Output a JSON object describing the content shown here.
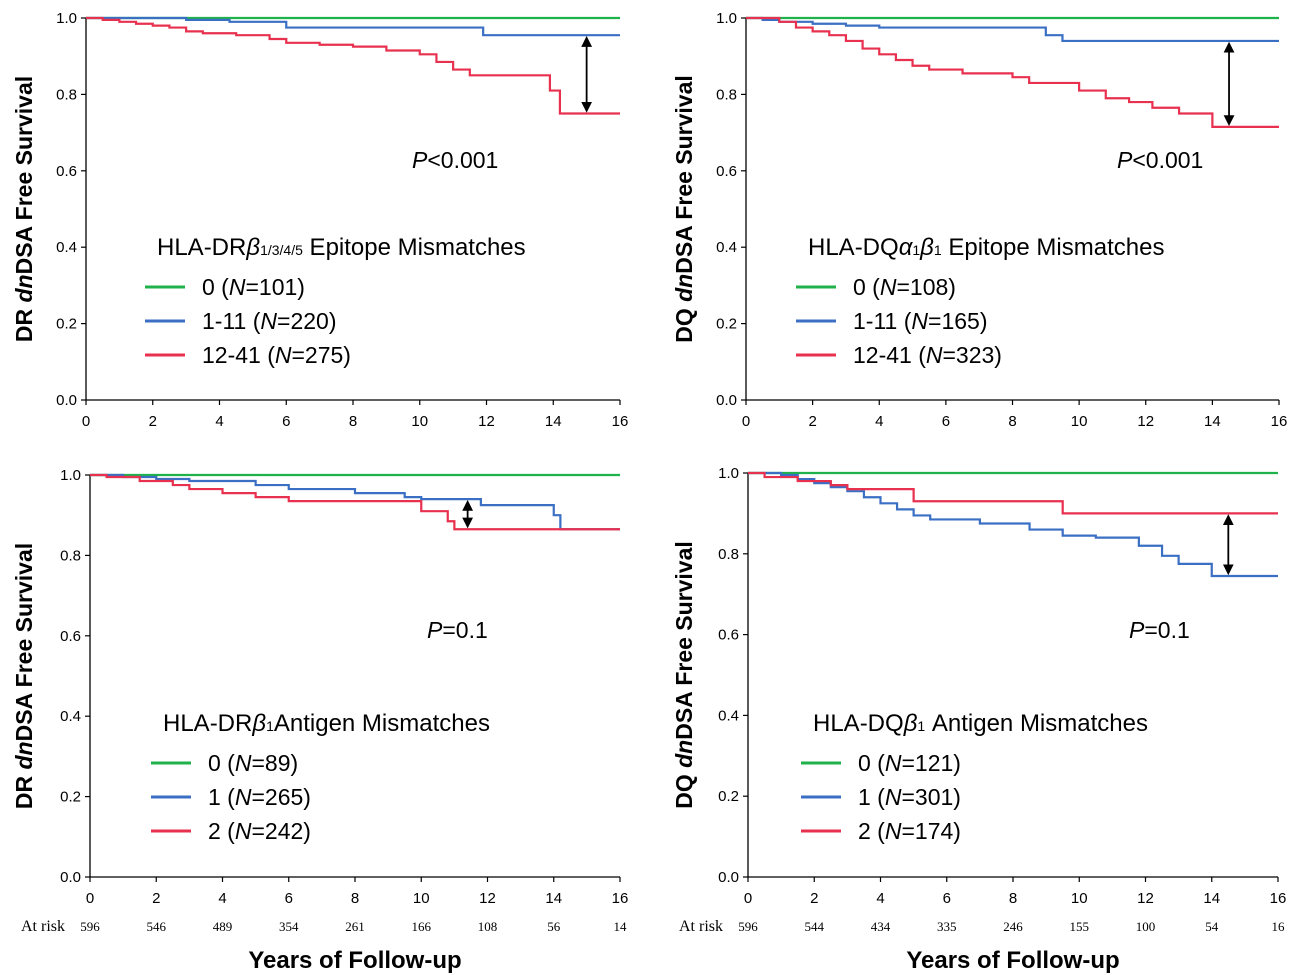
{
  "figure": {
    "x_axis_label": "Years of Follow-up",
    "at_risk_label": "At risk"
  },
  "chart_data": [
    {
      "type": "line",
      "step": true,
      "ylabel_prefix": "DR ",
      "ylabel_italic": "dn",
      "ylabel_suffix": "DSA Free Survival",
      "xlim": [
        0,
        16
      ],
      "ylim": [
        0,
        1
      ],
      "xticks": [
        0,
        2,
        4,
        6,
        8,
        10,
        12,
        14,
        16
      ],
      "yticks": [
        "0.0",
        "0.2",
        "0.4",
        "0.6",
        "0.8",
        "1.0"
      ],
      "pvalue": {
        "prefix": "P",
        "text": "<0.001"
      },
      "legend": {
        "title_a": "HLA-DR",
        "title_greek": "β",
        "title_sub": "1/3/4/5",
        "title_b": " Epitope Mismatches"
      },
      "series": [
        {
          "name": "0",
          "n": "101",
          "color": "#1fb24a",
          "points": [
            [
              0,
              1.0
            ],
            [
              16,
              1.0
            ]
          ]
        },
        {
          "name": "1-11",
          "n": "220",
          "color": "#3a6fc4",
          "points": [
            [
              0,
              1.0
            ],
            [
              3,
              0.995
            ],
            [
              4.3,
              0.99
            ],
            [
              6,
              0.975
            ],
            [
              11.9,
              0.955
            ],
            [
              16,
              0.955
            ]
          ]
        },
        {
          "name": "12-41",
          "n": "275",
          "color": "#e8304f",
          "points": [
            [
              0,
              1.0
            ],
            [
              0.5,
              0.995
            ],
            [
              1,
              0.99
            ],
            [
              1.5,
              0.985
            ],
            [
              2,
              0.98
            ],
            [
              2.5,
              0.975
            ],
            [
              3,
              0.965
            ],
            [
              3.5,
              0.96
            ],
            [
              4.5,
              0.955
            ],
            [
              5.5,
              0.945
            ],
            [
              6,
              0.935
            ],
            [
              7,
              0.93
            ],
            [
              8,
              0.925
            ],
            [
              9,
              0.915
            ],
            [
              10,
              0.905
            ],
            [
              10.5,
              0.885
            ],
            [
              11,
              0.865
            ],
            [
              11.5,
              0.85
            ],
            [
              13.9,
              0.81
            ],
            [
              14.2,
              0.75
            ],
            [
              16,
              0.75
            ]
          ]
        }
      ],
      "arrow": {
        "x": 15,
        "y_top": 0.955,
        "y_bottom": 0.75
      }
    },
    {
      "type": "line",
      "step": true,
      "ylabel_prefix": "DQ ",
      "ylabel_italic": "dn",
      "ylabel_suffix": "DSA Free Survival",
      "xlim": [
        0,
        16
      ],
      "ylim": [
        0,
        1
      ],
      "xticks": [
        0,
        2,
        4,
        6,
        8,
        10,
        12,
        14,
        16
      ],
      "yticks": [
        "0.0",
        "0.2",
        "0.4",
        "0.6",
        "0.8",
        "1.0"
      ],
      "pvalue": {
        "prefix": "P",
        "text": "<0.001"
      },
      "legend": {
        "title_a": "HLA-DQ",
        "title_greek": "α",
        "title_sub": "1",
        "title_greek2": "β",
        "title_sub2": "1",
        "title_b": " Epitope Mismatches"
      },
      "series": [
        {
          "name": "0",
          "n": "108",
          "color": "#1fb24a",
          "points": [
            [
              0,
              1.0
            ],
            [
              16,
              1.0
            ]
          ]
        },
        {
          "name": "1-11",
          "n": "165",
          "color": "#3a6fc4",
          "points": [
            [
              0,
              1.0
            ],
            [
              0.5,
              0.995
            ],
            [
              1,
              0.99
            ],
            [
              2,
              0.985
            ],
            [
              3,
              0.98
            ],
            [
              4,
              0.975
            ],
            [
              9,
              0.955
            ],
            [
              9.5,
              0.94
            ],
            [
              16,
              0.94
            ]
          ]
        },
        {
          "name": "12-41",
          "n": "323",
          "color": "#e8304f",
          "points": [
            [
              0,
              1.0
            ],
            [
              1,
              0.99
            ],
            [
              1.5,
              0.975
            ],
            [
              2,
              0.965
            ],
            [
              2.5,
              0.955
            ],
            [
              3,
              0.94
            ],
            [
              3.5,
              0.92
            ],
            [
              4,
              0.905
            ],
            [
              4.5,
              0.89
            ],
            [
              5,
              0.875
            ],
            [
              5.5,
              0.865
            ],
            [
              6.5,
              0.855
            ],
            [
              8,
              0.845
            ],
            [
              8.5,
              0.83
            ],
            [
              10,
              0.81
            ],
            [
              10.8,
              0.79
            ],
            [
              11.5,
              0.78
            ],
            [
              12.2,
              0.765
            ],
            [
              13,
              0.75
            ],
            [
              14,
              0.715
            ],
            [
              16,
              0.715
            ]
          ]
        }
      ],
      "arrow": {
        "x": 14.5,
        "y_top": 0.94,
        "y_bottom": 0.715
      }
    },
    {
      "type": "line",
      "step": true,
      "ylabel_prefix": "DR ",
      "ylabel_italic": "dn",
      "ylabel_suffix": "DSA Free Survival",
      "xlim": [
        0,
        16
      ],
      "ylim": [
        0,
        1
      ],
      "xticks": [
        0,
        2,
        4,
        6,
        8,
        10,
        12,
        14,
        16
      ],
      "yticks": [
        "0.0",
        "0.2",
        "0.4",
        "0.6",
        "0.8",
        "1.0"
      ],
      "pvalue": {
        "prefix": "P",
        "text": "=0.1"
      },
      "legend": {
        "title_a": "HLA-DR",
        "title_greek": "β",
        "title_sub": "1",
        "title_b": "Antigen Mismatches"
      },
      "series": [
        {
          "name": "0",
          "n": "89",
          "color": "#1fb24a",
          "points": [
            [
              0,
              1.0
            ],
            [
              16,
              1.0
            ]
          ]
        },
        {
          "name": "1",
          "n": "265",
          "color": "#3a6fc4",
          "points": [
            [
              0,
              1.0
            ],
            [
              1,
              0.995
            ],
            [
              2,
              0.99
            ],
            [
              3,
              0.985
            ],
            [
              5,
              0.975
            ],
            [
              6,
              0.965
            ],
            [
              8,
              0.955
            ],
            [
              9.5,
              0.945
            ],
            [
              10,
              0.94
            ],
            [
              11.8,
              0.925
            ],
            [
              14,
              0.9
            ],
            [
              14.2,
              0.865
            ],
            [
              16,
              0.865
            ]
          ]
        },
        {
          "name": "2",
          "n": "242",
          "color": "#e8304f",
          "points": [
            [
              0,
              1.0
            ],
            [
              0.5,
              0.995
            ],
            [
              1.5,
              0.985
            ],
            [
              2.5,
              0.975
            ],
            [
              3,
              0.965
            ],
            [
              4,
              0.955
            ],
            [
              5,
              0.945
            ],
            [
              6,
              0.935
            ],
            [
              10,
              0.91
            ],
            [
              10.8,
              0.885
            ],
            [
              11,
              0.865
            ],
            [
              16,
              0.865
            ]
          ]
        }
      ],
      "arrow": {
        "x": 11.4,
        "y_top": 0.94,
        "y_bottom": 0.865
      }
    },
    {
      "type": "line",
      "step": true,
      "ylabel_prefix": "DQ ",
      "ylabel_italic": "dn",
      "ylabel_suffix": "DSA Free Survival",
      "xlim": [
        0,
        16
      ],
      "ylim": [
        0,
        1
      ],
      "xticks": [
        0,
        2,
        4,
        6,
        8,
        10,
        12,
        14,
        16
      ],
      "yticks": [
        "0.0",
        "0.2",
        "0.4",
        "0.6",
        "0.8",
        "1.0"
      ],
      "pvalue": {
        "prefix": "P",
        "text": "=0.1"
      },
      "legend": {
        "title_a": "HLA-DQ",
        "title_greek": "β",
        "title_sub": "1",
        "title_b": " Antigen Mismatches"
      },
      "series": [
        {
          "name": "0",
          "n": "121",
          "color": "#1fb24a",
          "points": [
            [
              0,
              1.0
            ],
            [
              16,
              1.0
            ]
          ]
        },
        {
          "name": "1",
          "n": "301",
          "color": "#3a6fc4",
          "points": [
            [
              0,
              1.0
            ],
            [
              1,
              0.995
            ],
            [
              1.5,
              0.985
            ],
            [
              2,
              0.975
            ],
            [
              2.5,
              0.965
            ],
            [
              3,
              0.955
            ],
            [
              3.5,
              0.94
            ],
            [
              4,
              0.925
            ],
            [
              4.5,
              0.91
            ],
            [
              5,
              0.895
            ],
            [
              5.5,
              0.885
            ],
            [
              7,
              0.875
            ],
            [
              8.5,
              0.86
            ],
            [
              9.5,
              0.845
            ],
            [
              10.5,
              0.84
            ],
            [
              11.8,
              0.82
            ],
            [
              12.5,
              0.795
            ],
            [
              13,
              0.775
            ],
            [
              14,
              0.745
            ],
            [
              16,
              0.745
            ]
          ]
        },
        {
          "name": "2",
          "n": "174",
          "color": "#e8304f",
          "points": [
            [
              0,
              1.0
            ],
            [
              0.5,
              0.99
            ],
            [
              1.5,
              0.98
            ],
            [
              2.5,
              0.97
            ],
            [
              3,
              0.96
            ],
            [
              5,
              0.93
            ],
            [
              9.5,
              0.9
            ],
            [
              16,
              0.9
            ]
          ]
        }
      ],
      "arrow": {
        "x": 14.5,
        "y_top": 0.9,
        "y_bottom": 0.745
      }
    }
  ],
  "at_risk": [
    [
      "596",
      "546",
      "489",
      "354",
      "261",
      "166",
      "108",
      "56",
      "14"
    ],
    [
      "596",
      "544",
      "434",
      "335",
      "246",
      "155",
      "100",
      "54",
      "16"
    ]
  ]
}
